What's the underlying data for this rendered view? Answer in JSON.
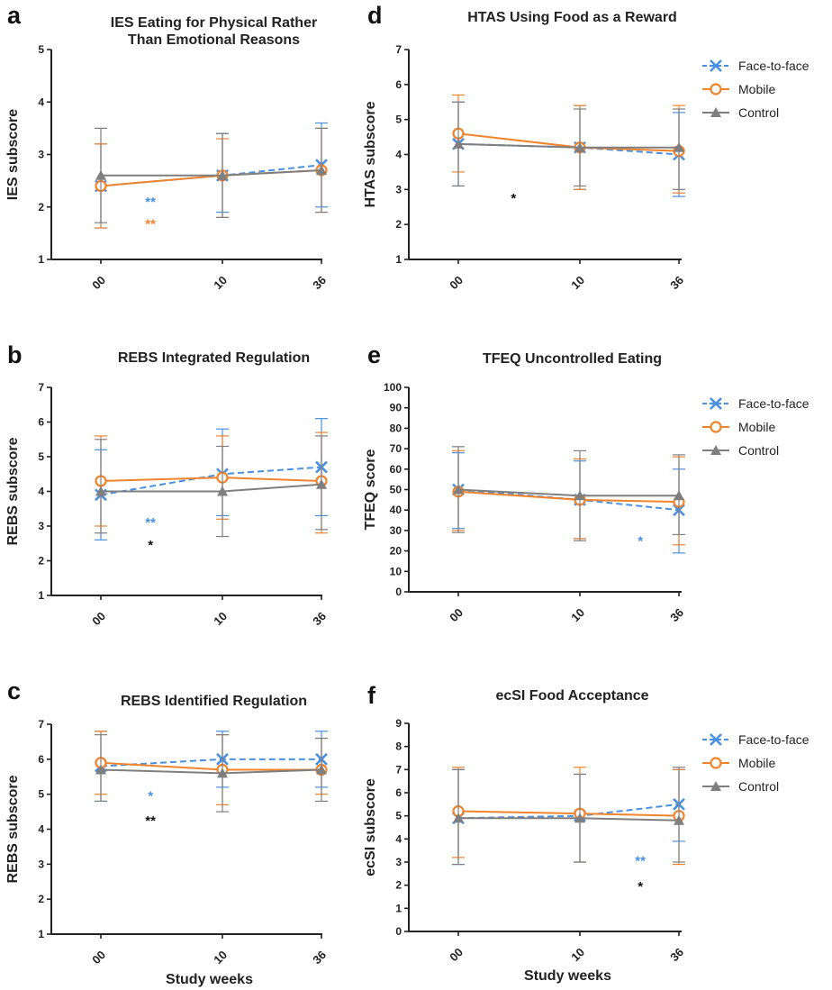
{
  "colors": {
    "face": "#4a90e2",
    "mobile": "#f0842c",
    "control": "#7f7f7f",
    "axis": "#222222",
    "star_black": "#111111"
  },
  "chart_data": [
    {
      "letter": "a",
      "type": "line",
      "title_lines": [
        "IES Eating for Physical Rather",
        "Than Emotional Reasons"
      ],
      "ylabel": "IES subscore",
      "xlabel": "",
      "ylim": [
        1,
        5
      ],
      "yticks": [
        "1",
        "2",
        "3",
        "4",
        "5"
      ],
      "x": [
        "00",
        "10",
        "36"
      ],
      "legend": false,
      "series": [
        {
          "name": "Face-to-face",
          "values": [
            2.4,
            2.6,
            2.8
          ],
          "err_low": [
            1.6,
            1.9,
            2.0
          ],
          "err_high": [
            3.2,
            3.4,
            3.6
          ]
        },
        {
          "name": "Mobile",
          "values": [
            2.4,
            2.6,
            2.7
          ],
          "err_low": [
            1.6,
            1.8,
            1.9
          ],
          "err_high": [
            3.2,
            3.3,
            3.5
          ]
        },
        {
          "name": "Control",
          "values": [
            2.6,
            2.6,
            2.7
          ],
          "err_low": [
            1.7,
            1.8,
            1.9
          ],
          "err_high": [
            3.5,
            3.4,
            3.5
          ]
        }
      ],
      "annotations": [
        {
          "text": "**",
          "color": "face",
          "x": 1.45,
          "y": 2.1
        },
        {
          "text": "**",
          "color": "mobile",
          "x": 1.45,
          "y": 1.68
        }
      ]
    },
    {
      "letter": "b",
      "type": "line",
      "title_lines": [
        "REBS Integrated Regulation"
      ],
      "ylabel": "REBS subscore",
      "xlabel": "",
      "ylim": [
        1,
        7
      ],
      "yticks": [
        "1",
        "2",
        "3",
        "4",
        "5",
        "6",
        "7"
      ],
      "x": [
        "00",
        "10",
        "36"
      ],
      "legend": false,
      "series": [
        {
          "name": "Face-to-face",
          "values": [
            3.9,
            4.5,
            4.7
          ],
          "err_low": [
            2.6,
            3.3,
            3.3
          ],
          "err_high": [
            5.2,
            5.8,
            6.1
          ]
        },
        {
          "name": "Mobile",
          "values": [
            4.3,
            4.4,
            4.3
          ],
          "err_low": [
            3.0,
            3.2,
            2.8
          ],
          "err_high": [
            5.6,
            5.6,
            5.7
          ]
        },
        {
          "name": "Control",
          "values": [
            4.0,
            4.0,
            4.2
          ],
          "err_low": [
            2.8,
            2.7,
            2.9
          ],
          "err_high": [
            5.5,
            5.3,
            5.6
          ]
        }
      ],
      "annotations": [
        {
          "text": "**",
          "color": "face",
          "x": 1.45,
          "y": 3.1
        },
        {
          "text": "*",
          "color": "star_black",
          "x": 1.45,
          "y": 2.45
        }
      ]
    },
    {
      "letter": "c",
      "type": "line",
      "title_lines": [
        "REBS Identified Regulation"
      ],
      "ylabel": "REBS subscore",
      "xlabel": "Study weeks",
      "ylim": [
        1,
        7
      ],
      "yticks": [
        "1",
        "2",
        "3",
        "4",
        "5",
        "6",
        "7"
      ],
      "x": [
        "00",
        "10",
        "36"
      ],
      "legend": false,
      "series": [
        {
          "name": "Face-to-face",
          "values": [
            5.8,
            6.0,
            6.0
          ],
          "err_low": [
            4.8,
            5.2,
            5.2
          ],
          "err_high": [
            6.8,
            6.8,
            6.8
          ]
        },
        {
          "name": "Mobile",
          "values": [
            5.9,
            5.7,
            5.7
          ],
          "err_low": [
            5.0,
            4.7,
            5.0
          ],
          "err_high": [
            6.8,
            6.7,
            6.6
          ]
        },
        {
          "name": "Control",
          "values": [
            5.7,
            5.6,
            5.7
          ],
          "err_low": [
            4.8,
            4.5,
            4.8
          ],
          "err_high": [
            6.7,
            6.7,
            6.6
          ]
        }
      ],
      "annotations": [
        {
          "text": "*",
          "color": "face",
          "x": 1.45,
          "y": 4.95
        },
        {
          "text": "**",
          "color": "star_black",
          "x": 1.45,
          "y": 4.25
        }
      ]
    },
    {
      "letter": "d",
      "type": "line",
      "title_lines": [
        "HTAS Using Food as a Reward"
      ],
      "ylabel": "HTAS subscore",
      "xlabel": "",
      "ylim": [
        1,
        7
      ],
      "yticks": [
        "1",
        "2",
        "3",
        "4",
        "5",
        "6",
        "7"
      ],
      "x": [
        "00",
        "10",
        "36"
      ],
      "legend": true,
      "series": [
        {
          "name": "Face-to-face",
          "values": [
            4.3,
            4.2,
            4.0
          ],
          "err_low": [
            3.1,
            3.0,
            2.8
          ],
          "err_high": [
            5.5,
            5.4,
            5.2
          ]
        },
        {
          "name": "Mobile",
          "values": [
            4.6,
            4.2,
            4.1
          ],
          "err_low": [
            3.5,
            3.0,
            2.9
          ],
          "err_high": [
            5.7,
            5.4,
            5.4
          ]
        },
        {
          "name": "Control",
          "values": [
            4.3,
            4.2,
            4.2
          ],
          "err_low": [
            3.1,
            3.1,
            3.0
          ],
          "err_high": [
            5.5,
            5.3,
            5.3
          ]
        }
      ],
      "annotations": [
        {
          "text": "*",
          "color": "star_black",
          "x": 1.5,
          "y": 2.75
        }
      ]
    },
    {
      "letter": "e",
      "type": "line",
      "title_lines": [
        "TFEQ Uncontrolled Eating"
      ],
      "ylabel": "TFEQ score",
      "xlabel": "",
      "ylim": [
        0,
        100
      ],
      "yticks": [
        "0",
        "10",
        "20",
        "30",
        "40",
        "50",
        "60",
        "70",
        "80",
        "90",
        "100"
      ],
      "x": [
        "00",
        "10",
        "36"
      ],
      "legend": true,
      "series": [
        {
          "name": "Face-to-face",
          "values": [
            50,
            45,
            40
          ],
          "err_low": [
            31,
            26,
            19
          ],
          "err_high": [
            68,
            64,
            60
          ]
        },
        {
          "name": "Mobile",
          "values": [
            49,
            45,
            44
          ],
          "err_low": [
            30,
            26,
            23
          ],
          "err_high": [
            69,
            65,
            66
          ]
        },
        {
          "name": "Control",
          "values": [
            50,
            47,
            47
          ],
          "err_low": [
            29,
            25,
            28
          ],
          "err_high": [
            71,
            69,
            67
          ]
        }
      ],
      "annotations": [
        {
          "text": "*",
          "color": "face",
          "x": 2.65,
          "y": 25
        }
      ]
    },
    {
      "letter": "f",
      "type": "line",
      "title_lines": [
        "ecSI Food Acceptance"
      ],
      "ylabel": "ecSI subscore",
      "xlabel": "Study weeks",
      "ylim": [
        0,
        9
      ],
      "yticks": [
        "0",
        "1",
        "2",
        "3",
        "4",
        "5",
        "6",
        "7",
        "8",
        "9"
      ],
      "x": [
        "00",
        "10",
        "36"
      ],
      "legend": true,
      "series": [
        {
          "name": "Face-to-face",
          "values": [
            4.9,
            5.0,
            5.5
          ],
          "err_low": [
            2.9,
            3.0,
            3.9
          ],
          "err_high": [
            7.0,
            6.8,
            7.0
          ]
        },
        {
          "name": "Mobile",
          "values": [
            5.2,
            5.1,
            5.0
          ],
          "err_low": [
            3.2,
            3.0,
            2.9
          ],
          "err_high": [
            7.1,
            7.1,
            7.0
          ]
        },
        {
          "name": "Control",
          "values": [
            4.9,
            4.9,
            4.8
          ],
          "err_low": [
            2.9,
            3.0,
            3.0
          ],
          "err_high": [
            7.0,
            6.8,
            7.1
          ]
        }
      ],
      "annotations": [
        {
          "text": "**",
          "color": "face",
          "x": 2.65,
          "y": 3.05
        },
        {
          "text": "*",
          "color": "star_black",
          "x": 2.65,
          "y": 1.95
        }
      ]
    }
  ]
}
